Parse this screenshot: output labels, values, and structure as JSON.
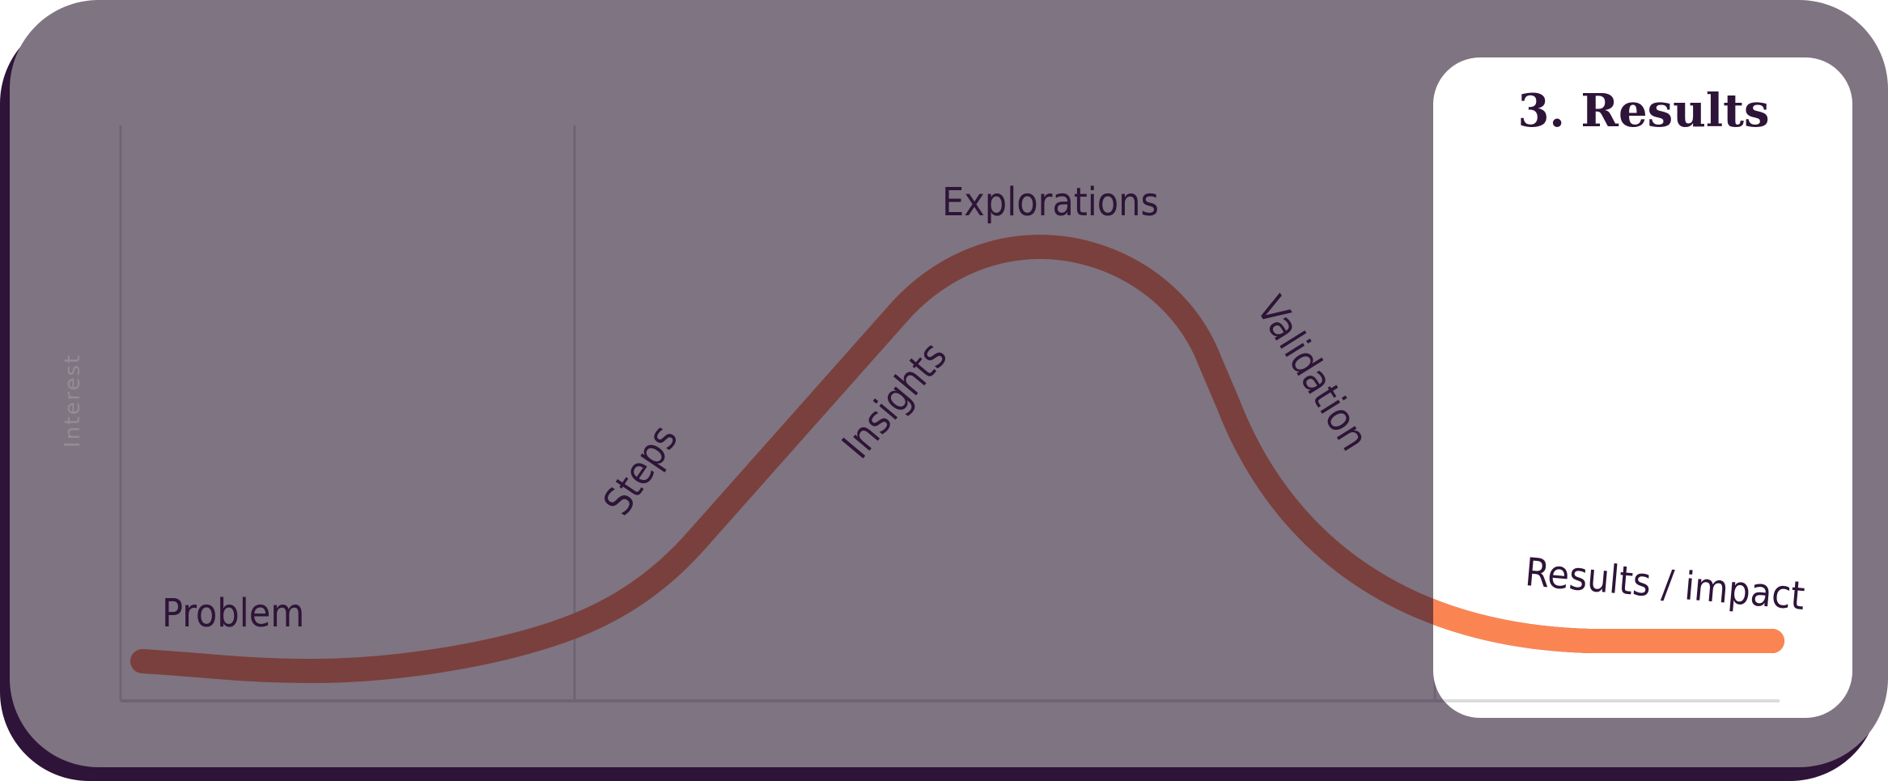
{
  "panel": {
    "title": "3. Results"
  },
  "axis": {
    "ylabel": "Interest"
  },
  "stages": {
    "problem": "Problem",
    "steps": "Steps",
    "insights": "Insights",
    "explorations": "Explorations",
    "validation": "Validation",
    "results": "Results / impact"
  },
  "colors": {
    "card": "#7f7481",
    "shadow": "#2e1438",
    "curve": "#7a403d",
    "highlight_curve": "#fb8552",
    "text": "#2e1438",
    "panel": "#ffffff"
  }
}
